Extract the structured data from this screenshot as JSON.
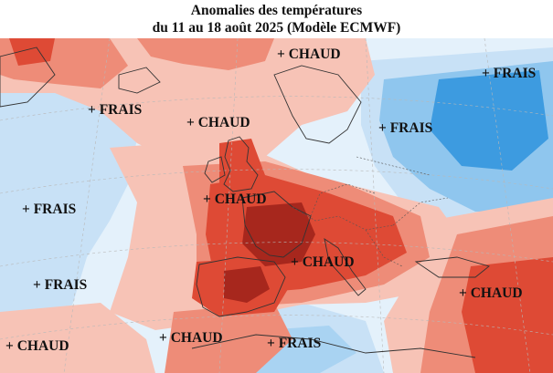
{
  "title": {
    "line1": "Anomalies des températures",
    "line2": "du 11 au 18 août 2025 (Modèle ECMWF)"
  },
  "colors": {
    "sea_light_blue": "#e4f1fb",
    "light_blue": "#c8e1f6",
    "medium_blue": "#8fc6ee",
    "strong_blue": "#3d9be0",
    "light_red": "#f7c3b6",
    "medium_red": "#ee8c78",
    "strong_red": "#de4a35",
    "dark_red": "#a7271d",
    "coastline": "#333333",
    "border": "#555555"
  },
  "labels": [
    {
      "id": "chaud-north",
      "text": "+ CHAUD"
    },
    {
      "id": "frais-east",
      "text": "+ FRAIS"
    },
    {
      "id": "frais-northwest",
      "text": "+ FRAIS"
    },
    {
      "id": "chaud-northsea",
      "text": "+ CHAUD"
    },
    {
      "id": "frais-baltic",
      "text": "+ FRAIS"
    },
    {
      "id": "chaud-britain",
      "text": "+ CHAUD"
    },
    {
      "id": "frais-atlantic",
      "text": "+ FRAIS"
    },
    {
      "id": "chaud-central",
      "text": "+ CHAUD"
    },
    {
      "id": "frais-southwest",
      "text": "+ FRAIS"
    },
    {
      "id": "chaud-southeast",
      "text": "+ CHAUD"
    },
    {
      "id": "chaud-farsouthwest",
      "text": "+ CHAUD"
    },
    {
      "id": "chaud-south",
      "text": "+ CHAUD"
    },
    {
      "id": "frais-mediterranean",
      "text": "+ FRAIS"
    }
  ]
}
